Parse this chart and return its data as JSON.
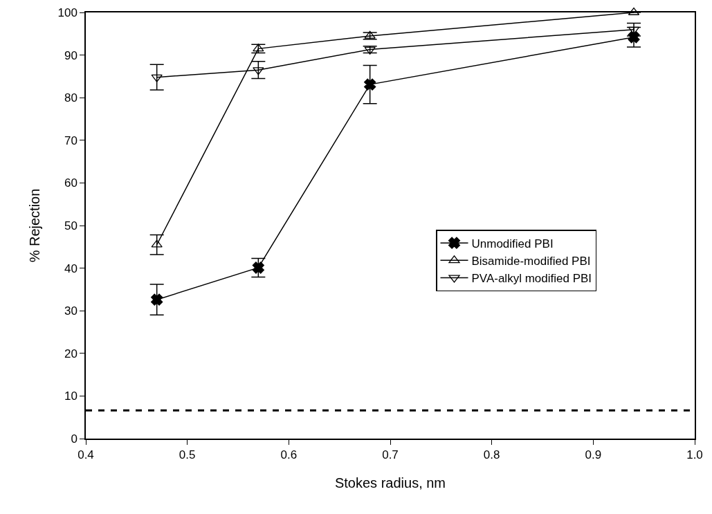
{
  "chart_data": {
    "type": "line",
    "xlabel": "Stokes radius, nm",
    "ylabel": "% Rejection",
    "x": [
      0.47,
      0.57,
      0.68,
      0.94
    ],
    "series": [
      {
        "name": "Unmodified PBI",
        "color": "#000000",
        "marker": "cross",
        "values": [
          32.6,
          40.1,
          83.1,
          94.2
        ],
        "errors": [
          3.6,
          2.2,
          4.5,
          2.3
        ]
      },
      {
        "name": "Bisamide-modified PBI",
        "color": "#000000",
        "marker": "triangle",
        "values": [
          45.5,
          91.5,
          94.5,
          100
        ],
        "errors": [
          2.3,
          1,
          0.8,
          null
        ]
      },
      {
        "name": "PVA-alkyl modified PBI",
        "color": "#000000",
        "marker": "triangle-down",
        "values": [
          84.8,
          86.5,
          91.3,
          96
        ],
        "errors": [
          3,
          2,
          0.8,
          1.5
        ]
      }
    ],
    "xlim": [
      0.4,
      1.0
    ],
    "xticks": [
      {
        "value": 0.4,
        "label": "0.4"
      },
      0.5,
      0.6,
      0.7,
      0.8,
      0.9,
      {
        "value": 1.0,
        "label": "1.0"
      }
    ],
    "ylim": [
      0,
      100
    ],
    "yticks": [
      0,
      10,
      20,
      30,
      40,
      50,
      60,
      70,
      80,
      90,
      100
    ],
    "ref_lines": [
      {
        "axis": "y",
        "value": 6.6,
        "color": "#000000",
        "line_style": "dashed"
      }
    ],
    "grid": false,
    "legend": "right",
    "line_style": "solid"
  }
}
